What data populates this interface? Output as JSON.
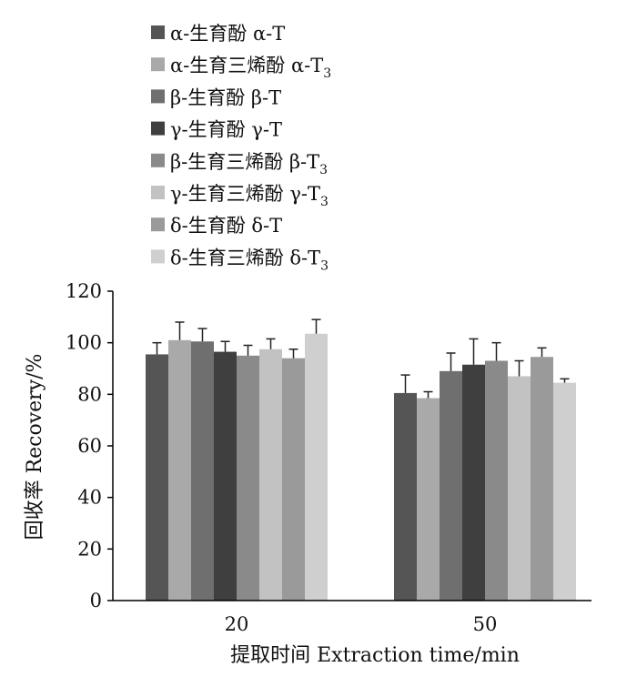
{
  "chart_data": {
    "type": "bar",
    "categories": [
      "20",
      "50"
    ],
    "xlabel": "提取时间 Extraction time/min",
    "ylabel": "回收率 Recovery/%",
    "ylim": [
      0,
      120
    ],
    "yticks": [
      0,
      20,
      40,
      60,
      80,
      100,
      120
    ],
    "grid": false,
    "legend_position": "top",
    "series": [
      {
        "name": "α-生育酚 α-T",
        "name_base": "α-生育酚  α-T",
        "name_sub": "",
        "color": "#555555",
        "values": [
          95.5,
          80.5
        ],
        "errors": [
          4.5,
          7.0
        ]
      },
      {
        "name": "α-生育三烯酚 α-T3",
        "name_base": "α-生育三烯酚 α-T",
        "name_sub": "3",
        "color": "#a9a9a9",
        "values": [
          101.0,
          78.5
        ],
        "errors": [
          7.0,
          2.5
        ]
      },
      {
        "name": "β-生育酚 β-T",
        "name_base": "β-生育酚  β-T",
        "name_sub": "",
        "color": "#6f6f6f",
        "values": [
          100.5,
          89.0
        ],
        "errors": [
          5.0,
          7.0
        ]
      },
      {
        "name": "γ-生育酚 γ-T",
        "name_base": "γ-生育酚  γ-T",
        "name_sub": "",
        "color": "#3f3f3f",
        "values": [
          96.5,
          91.5
        ],
        "errors": [
          4.0,
          10.0
        ]
      },
      {
        "name": "β-生育三烯酚 β-T3",
        "name_base": "β-生育三烯酚 β-T",
        "name_sub": "3",
        "color": "#8a8a8a",
        "values": [
          95.0,
          93.0
        ],
        "errors": [
          4.0,
          7.0
        ]
      },
      {
        "name": "γ-生育三烯酚 γ-T3",
        "name_base": "γ-生育三烯酚 γ-T",
        "name_sub": "3",
        "color": "#c2c2c2",
        "values": [
          97.5,
          87.0
        ],
        "errors": [
          4.0,
          6.0
        ]
      },
      {
        "name": "δ-生育酚 δ-T",
        "name_base": "δ-生育酚 δ-T",
        "name_sub": "",
        "color": "#9a9a9a",
        "values": [
          94.0,
          94.5
        ],
        "errors": [
          3.5,
          3.5
        ]
      },
      {
        "name": "δ-生育三烯酚 δ-T3",
        "name_base": "δ-生育三烯酚 δ-T",
        "name_sub": "3",
        "color": "#cfcfcf",
        "values": [
          103.5,
          84.5
        ],
        "errors": [
          5.5,
          1.5
        ]
      }
    ]
  }
}
